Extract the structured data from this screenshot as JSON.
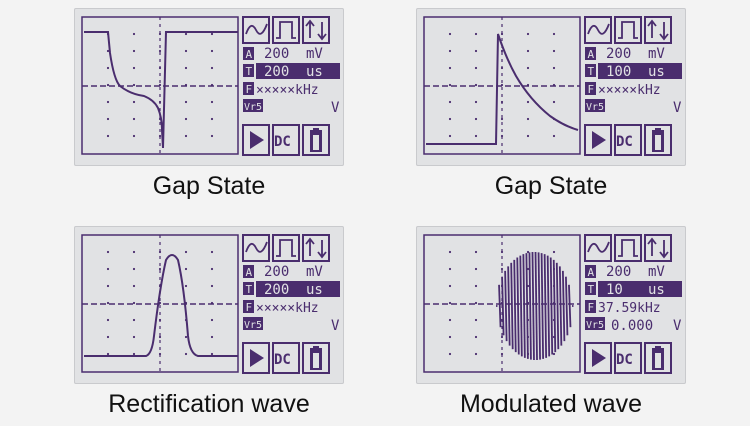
{
  "colors": {
    "lcd_bg": "#e1e2e4",
    "ink": "#4a2d6e",
    "page_bg": "#f3f3f3"
  },
  "panels": [
    {
      "caption": "Gap State",
      "wave": "gap-fall",
      "volts": "200",
      "volts_unit": "mV",
      "time": "200",
      "time_unit": "us",
      "freq": "×××××kHz",
      "vrms_label": "Vr5",
      "vrms_value": "",
      "vrms_unit": "V",
      "coupling": "DC",
      "channel_a": "A",
      "channel_t": "T",
      "channel_f": "F",
      "icons": [
        "sine-icon",
        "square-icon",
        "trigger-updown-icon",
        "play-icon",
        "battery-icon"
      ]
    },
    {
      "caption": "Gap State",
      "wave": "gap-rise",
      "volts": "200",
      "volts_unit": "mV",
      "time": "100",
      "time_unit": "us",
      "freq": "×××××kHz",
      "vrms_label": "Vr5",
      "vrms_value": "",
      "vrms_unit": "V",
      "coupling": "DC",
      "channel_a": "A",
      "channel_t": "T",
      "channel_f": "F",
      "icons": [
        "sine-icon",
        "square-icon",
        "trigger-updown-icon",
        "play-icon",
        "battery-icon"
      ]
    },
    {
      "caption": "Rectification wave",
      "wave": "pulse",
      "volts": "200",
      "volts_unit": "mV",
      "time": "200",
      "time_unit": "us",
      "freq": "×××××kHz",
      "vrms_label": "Vr5",
      "vrms_value": "",
      "vrms_unit": "V",
      "coupling": "DC",
      "channel_a": "A",
      "channel_t": "T",
      "channel_f": "F",
      "icons": [
        "sine-icon",
        "square-icon",
        "trigger-updown-icon",
        "play-icon",
        "battery-icon"
      ]
    },
    {
      "caption": "Modulated wave",
      "wave": "burst",
      "volts": "200",
      "volts_unit": "mV",
      "time": "10",
      "time_unit": "us",
      "freq": "37.59kHz",
      "vrms_label": "Vr5",
      "vrms_value": "0.000",
      "vrms_unit": "V",
      "coupling": "DC",
      "channel_a": "A",
      "channel_t": "T",
      "channel_f": "F",
      "icons": [
        "sine-icon",
        "square-icon",
        "trigger-updown-icon",
        "play-icon",
        "battery-icon"
      ]
    }
  ]
}
